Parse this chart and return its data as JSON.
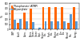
{
  "categories": [
    "GWP",
    "Acidif.",
    "Eutro.",
    "Photo.\nOzone",
    "Ozone\nDepl.",
    "Human\nTox.",
    "Fresh.\nTox.",
    "Marine\nTox.",
    "Terr.\nTox.",
    "Mineral\nRes.",
    "Energy"
  ],
  "series": [
    {
      "name": "Phosphonate (ATMP)",
      "color": "#FF6600",
      "values": [
        420,
        130,
        320,
        400,
        8,
        420,
        420,
        420,
        420,
        130,
        420
      ]
    },
    {
      "name": "Polyacrylate",
      "color": "#5B9BD5",
      "values": [
        180,
        200,
        150,
        140,
        35,
        160,
        155,
        150,
        150,
        290,
        150
      ]
    }
  ],
  "ylabel": "%",
  "ylim": [
    0,
    500
  ],
  "yticks": [
    0,
    100,
    200,
    300,
    400,
    500
  ],
  "background_color": "#FFFFFF",
  "grid_color": "#BBBBBB",
  "tick_fontsize": 1.8,
  "legend_fontsize": 2.2,
  "bar_width": 0.38,
  "legend_loc": "upper left"
}
